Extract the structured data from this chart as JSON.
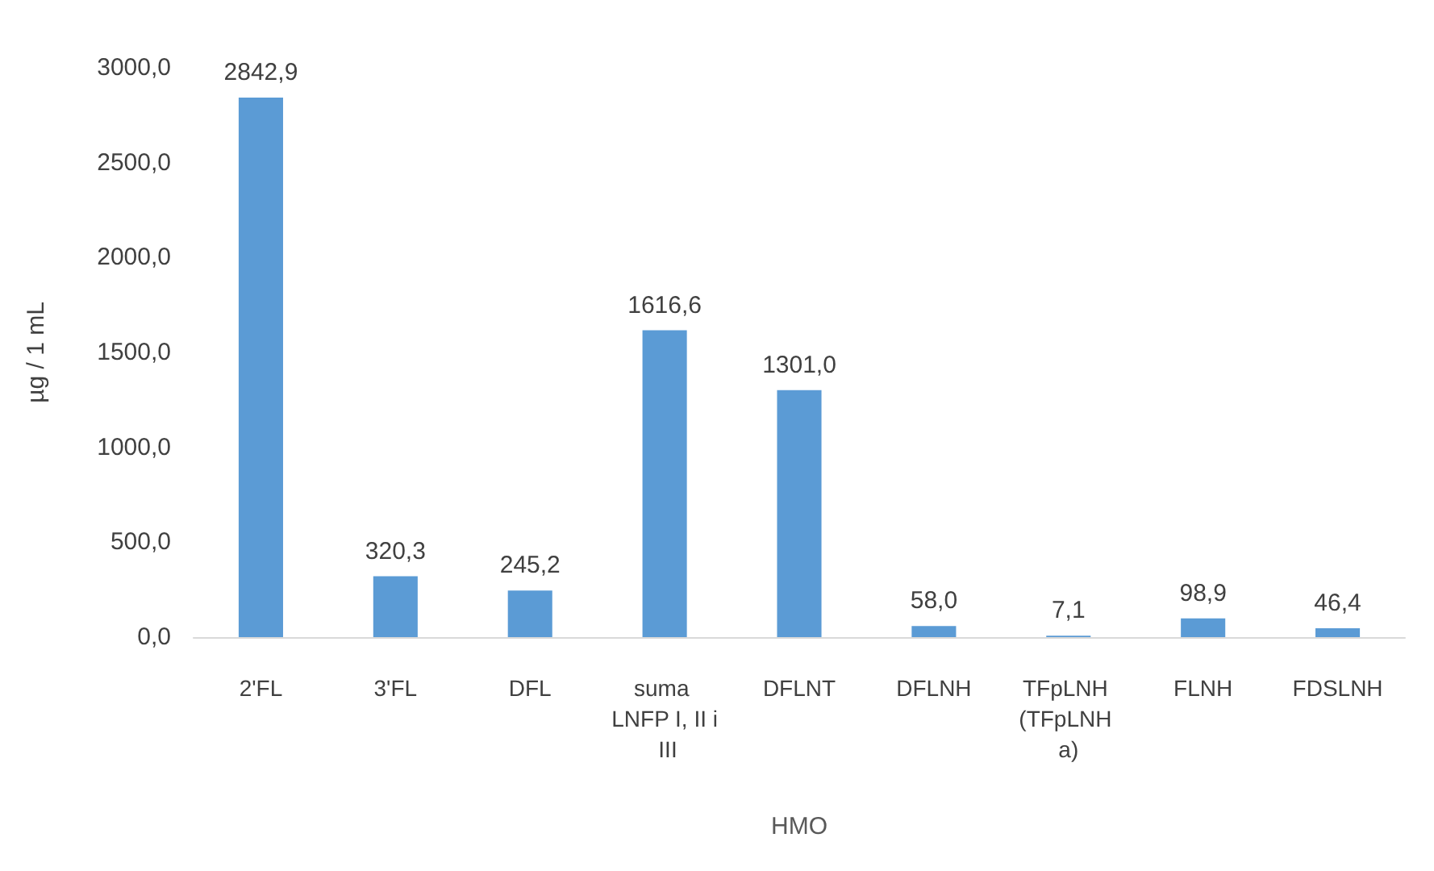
{
  "chart_data": {
    "type": "bar",
    "xlabel": "HMO",
    "ylabel": "µg / 1 mL",
    "categories": [
      "2'FL",
      "3'FL",
      "DFL",
      "suma LNFP I, II i III",
      "DFLNT",
      "DFLNH",
      "TFpLNH (TFpLNH a)",
      "FLNH",
      "FDSLNH"
    ],
    "values": [
      2842.9,
      320.3,
      245.2,
      1616.6,
      1301.0,
      58.0,
      7.1,
      98.9,
      46.4
    ],
    "value_labels": [
      "2842,9",
      "320,3",
      "245,2",
      "1616,6",
      "1301,0",
      "58,0",
      "7,1",
      "98,9",
      "46,4"
    ],
    "color": "#5b9bd5",
    "ylim": [
      0,
      3000
    ],
    "yticks": [
      {
        "value": 0,
        "label": "0,0"
      },
      {
        "value": 500,
        "label": "500,0"
      },
      {
        "value": 1000,
        "label": "1000,0"
      },
      {
        "value": 1500,
        "label": "1500,0"
      },
      {
        "value": 2000,
        "label": "2000,0"
      },
      {
        "value": 2500,
        "label": "2500,0"
      },
      {
        "value": 3000,
        "label": "3000,0"
      }
    ],
    "grid": false
  }
}
